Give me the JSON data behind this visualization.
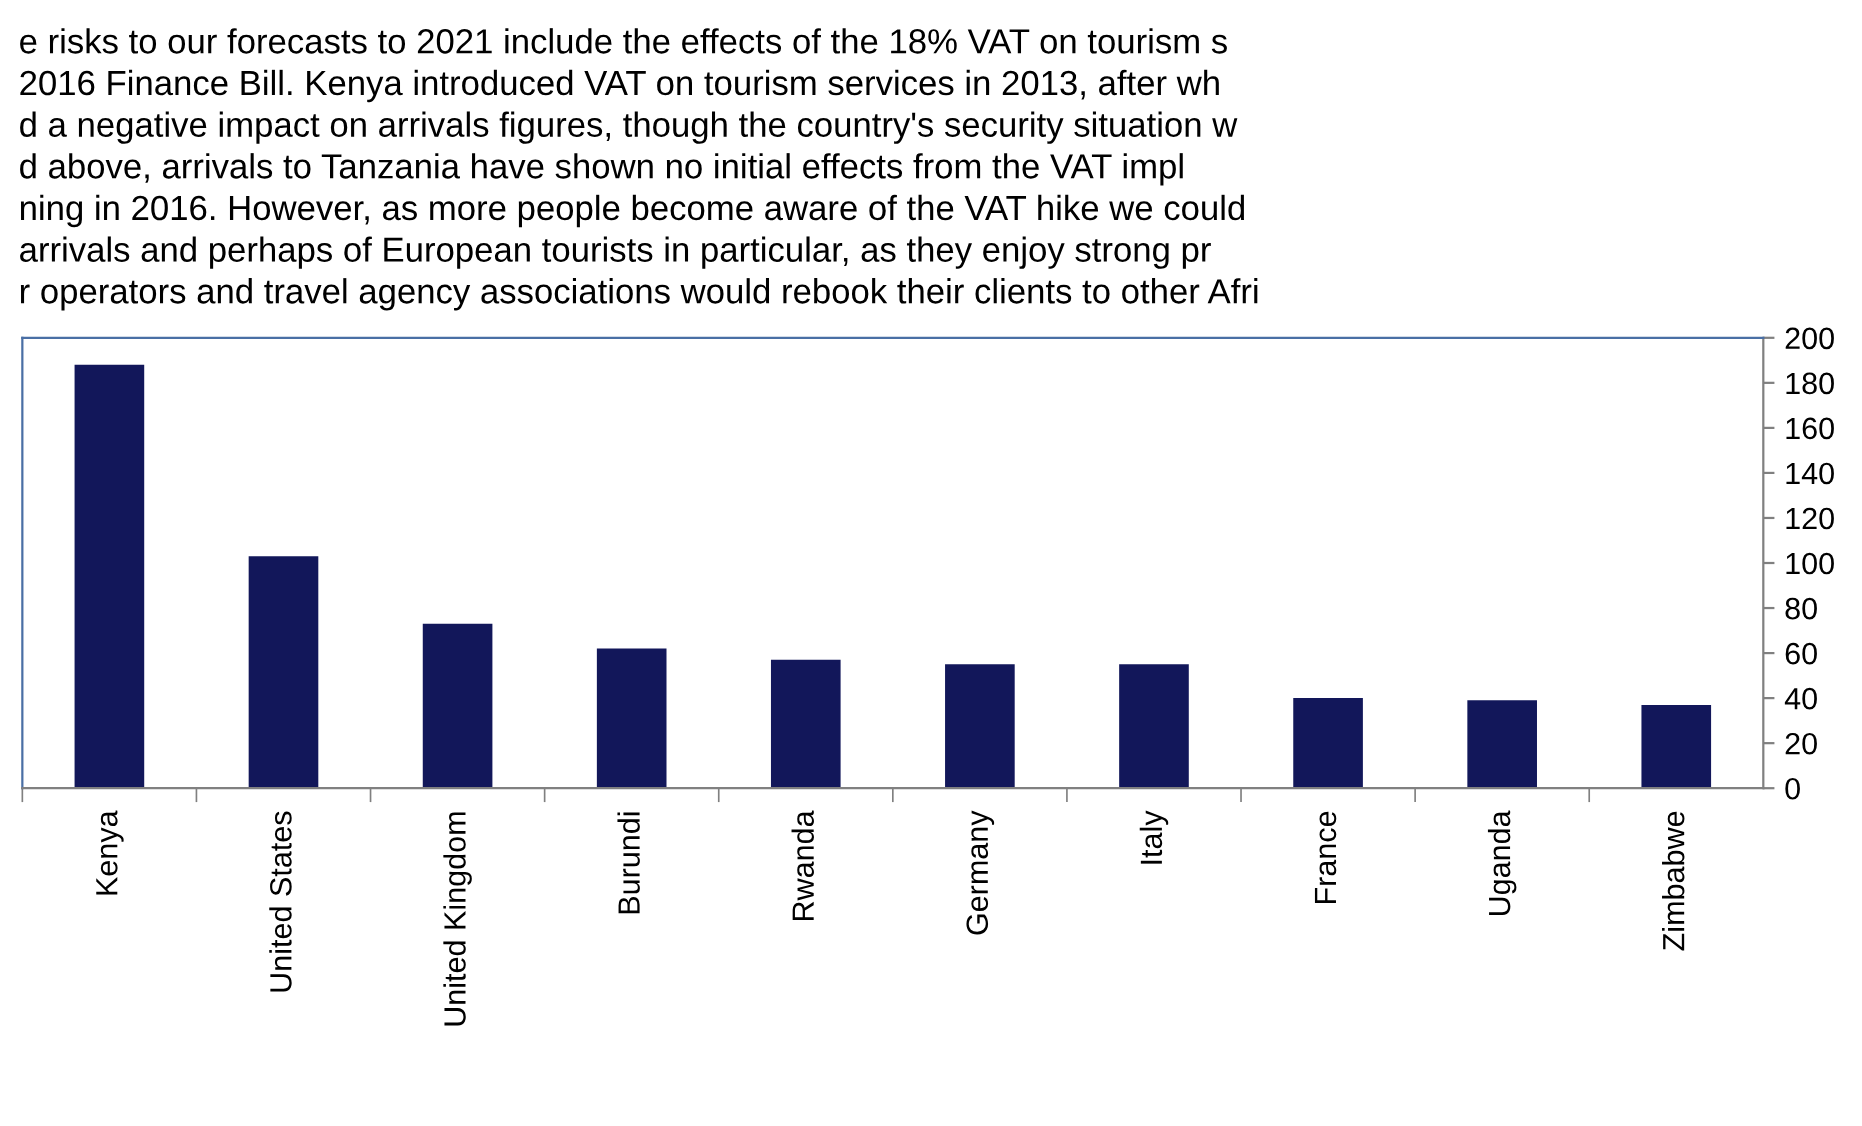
{
  "chart_data": {
    "type": "bar",
    "categories": [
      "Kenya",
      "United States",
      "United Kingdom",
      "Burundi",
      "Rwanda",
      "Germany",
      "Italy",
      "France",
      "Uganda",
      "Zimbabwe"
    ],
    "values": [
      188,
      103,
      73,
      62,
      57,
      55,
      55,
      40,
      39,
      37
    ],
    "color": "#12175a",
    "ylim": [
      0,
      200
    ],
    "yticks": [
      0,
      20,
      40,
      60,
      80,
      100,
      120,
      140,
      160,
      180,
      200
    ],
    "grid": false,
    "legend": false,
    "annotations": [
      "e risks to our forecasts to 2021 include the effects of the 18% VAT on tourism s",
      "2016 Finance Bill. Kenya introduced VAT on tourism services in 2013, after wh",
      "d a negative impact on arrivals figures, though the country's security situation w",
      "d above, arrivals to Tanzania have shown no initial effects from the VAT impl",
      "ning in 2016. However, as more people become aware of the VAT hike we could",
      "arrivals and perhaps of European tourists in particular, as they enjoy strong pr",
      "r operators and travel agency associations would rebook their clients to other Afri"
    ]
  }
}
